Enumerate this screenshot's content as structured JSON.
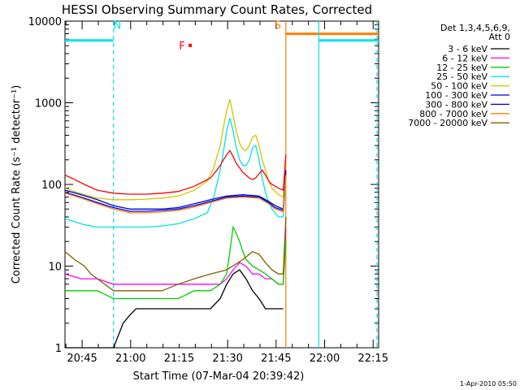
{
  "chart_data": {
    "type": "line",
    "title": "HESSI Observing Summary Count Rates, Corrected",
    "xlabel": "Start Time (07-Mar-04 20:39:42)",
    "ylabel": "Corrected Count Rate (s⁻¹ detector⁻¹)",
    "yscale": "log",
    "ylim": [
      1,
      10000
    ],
    "xlim_minutes": [
      0,
      97
    ],
    "x_ticks": [
      "20:45",
      "21:00",
      "21:15",
      "21:30",
      "21:45",
      "22:00",
      "22:15"
    ],
    "y_ticks": [
      "1",
      "10",
      "100",
      "1000",
      "10000"
    ],
    "legend_title": [
      "Det 1,3,4,5,6,9,",
      "Att 0"
    ],
    "legend_position": "right",
    "series": [
      {
        "name": "3 - 6 keV",
        "color": "#000000",
        "x": [
          0,
          10,
          15,
          18,
          20,
          22,
          25,
          27,
          29,
          31,
          33,
          35,
          40,
          45,
          48,
          50,
          52,
          54,
          56,
          58,
          60,
          62,
          64,
          66,
          67.5
        ],
        "y": [
          1,
          1,
          1,
          2,
          2.5,
          3,
          3,
          3,
          3,
          3,
          3,
          3,
          3,
          3,
          4,
          6,
          8,
          9,
          7,
          5,
          4,
          3,
          3,
          3,
          3
        ]
      },
      {
        "name": "6 - 12 keV",
        "color": "#ff00ff",
        "x": [
          0,
          5,
          10,
          15,
          20,
          25,
          30,
          35,
          40,
          45,
          48,
          50,
          52,
          54,
          56,
          58,
          60,
          62,
          64,
          66,
          67.5,
          68.3
        ],
        "y": [
          8,
          7,
          7,
          6,
          6,
          6,
          6,
          6,
          6,
          6,
          6,
          7,
          9,
          11,
          10,
          8,
          8,
          7,
          7,
          6,
          6,
          30
        ]
      },
      {
        "name": "12 - 25 keV",
        "color": "#00cc00",
        "x": [
          0,
          10,
          15,
          20,
          25,
          30,
          35,
          40,
          45,
          48,
          50,
          51,
          52,
          53,
          54,
          55,
          56,
          58,
          60,
          62,
          64,
          66,
          67.5,
          68.3
        ],
        "y": [
          5,
          5,
          4,
          4,
          4,
          4,
          4,
          5,
          5,
          6,
          8,
          15,
          30,
          25,
          20,
          15,
          12,
          10,
          9,
          8,
          7,
          6,
          6,
          20
        ]
      },
      {
        "name": "25 - 50 keV",
        "color": "#00e5e5",
        "x": [
          0,
          3,
          6,
          10,
          15,
          20,
          25,
          30,
          35,
          40,
          44,
          46,
          48,
          49,
          50,
          51,
          52,
          53,
          54,
          55,
          56,
          57,
          58,
          59,
          60,
          61,
          62,
          63,
          64,
          66,
          67.5,
          68.3
        ],
        "y": [
          38,
          35,
          32,
          30,
          30,
          30,
          30,
          31,
          33,
          38,
          45,
          70,
          150,
          250,
          450,
          650,
          450,
          280,
          200,
          170,
          170,
          200,
          280,
          300,
          200,
          120,
          80,
          60,
          50,
          40,
          40,
          120
        ]
      },
      {
        "name": "50 - 100 keV",
        "color": "#d4c400",
        "x": [
          0,
          3,
          6,
          10,
          15,
          20,
          25,
          30,
          35,
          40,
          44,
          46,
          48,
          49,
          50,
          51,
          52,
          53,
          54,
          55,
          56,
          57,
          58,
          59,
          60,
          61,
          62,
          63,
          64,
          66,
          67.5,
          68.3
        ],
        "y": [
          90,
          82,
          75,
          68,
          65,
          65,
          66,
          68,
          72,
          85,
          110,
          160,
          300,
          500,
          800,
          1100,
          700,
          450,
          320,
          270,
          260,
          300,
          380,
          400,
          300,
          200,
          150,
          110,
          90,
          75,
          70,
          180
        ]
      },
      {
        "name": "100 - 300 keV",
        "color": "#0000dd",
        "x": [
          0,
          5,
          10,
          15,
          20,
          25,
          30,
          35,
          40,
          45,
          50,
          55,
          60,
          63,
          65,
          67.5,
          68.3
        ],
        "y": [
          85,
          75,
          65,
          55,
          50,
          50,
          50,
          52,
          58,
          65,
          72,
          75,
          72,
          62,
          55,
          50,
          150
        ]
      },
      {
        "name": "300 - 800 keV",
        "color": "#0000dd",
        "x": [
          0,
          5,
          10,
          15,
          20,
          25,
          30,
          35,
          40,
          45,
          50,
          55,
          60,
          63,
          65,
          67.5,
          68.3
        ],
        "y": [
          80,
          70,
          60,
          52,
          47,
          47,
          48,
          50,
          55,
          62,
          70,
          72,
          70,
          60,
          52,
          48,
          140
        ]
      },
      {
        "name": "800 - 7000 keV",
        "color": "#ff7f00",
        "x": [
          0,
          5,
          10,
          15,
          20,
          25,
          30,
          35,
          40,
          45,
          50,
          55,
          60,
          63,
          65,
          67.5,
          68.3
        ],
        "y": [
          78,
          68,
          58,
          50,
          45,
          45,
          46,
          48,
          53,
          60,
          68,
          70,
          68,
          58,
          50,
          46,
          130
        ]
      },
      {
        "name": "7000 - 20000 keV",
        "color": "#806000",
        "x": [
          0,
          3,
          6,
          8,
          10,
          15,
          20,
          25,
          30,
          35,
          40,
          45,
          50,
          55,
          58,
          60,
          62,
          64,
          66,
          67.5,
          68.3
        ],
        "y": [
          15,
          12,
          10,
          8,
          7,
          5,
          5,
          5,
          5,
          6,
          7,
          8,
          9,
          12,
          15,
          14,
          11,
          9,
          8,
          8,
          40
        ]
      },
      {
        "name": "",
        "color": "#ff0000",
        "x": [
          0,
          3,
          6,
          10,
          15,
          20,
          25,
          30,
          35,
          40,
          45,
          47,
          48,
          49,
          50,
          51,
          52,
          53,
          54,
          55,
          56,
          57,
          58,
          59,
          60,
          61,
          62,
          63,
          64,
          65,
          66,
          67.5,
          68.3
        ],
        "y": [
          130,
          115,
          100,
          85,
          78,
          76,
          76,
          78,
          82,
          95,
          120,
          150,
          170,
          200,
          230,
          260,
          220,
          180,
          160,
          140,
          130,
          120,
          115,
          120,
          135,
          150,
          130,
          110,
          100,
          95,
          90,
          85,
          230
        ]
      }
    ],
    "state_bars": [
      {
        "label": "",
        "color": "#00e5e5",
        "x_start": 0,
        "x_end": 15,
        "y": 5800
      },
      {
        "label": "",
        "color": "#ff7f00",
        "x_start": 68.3,
        "x_end": 97,
        "y": 7000
      },
      {
        "label": "",
        "color": "#00e5e5",
        "x_start": 78.5,
        "x_end": 97,
        "y": 5800
      }
    ],
    "vertical_lines": [
      {
        "color": "#00e5e5",
        "x": 15,
        "style": "dashed"
      },
      {
        "color": "#ff7f00",
        "x": 68.3,
        "style": "solid"
      },
      {
        "color": "#00e5e5",
        "x": 78.5,
        "style": "solid"
      },
      {
        "color": "#00e5e5",
        "x": 96.5,
        "style": "dashed"
      }
    ],
    "annotations": [
      {
        "text": "N",
        "color": "#00e5e5",
        "x": 16.2,
        "y": 8000
      },
      {
        "text": "S",
        "color": "#ff7f00",
        "x": 65.8,
        "y": 8000
      },
      {
        "text": "F",
        "color": "#ff0000",
        "x": 36.2,
        "y": 4500
      }
    ],
    "footer": "1-Apr-2010 05:50"
  }
}
